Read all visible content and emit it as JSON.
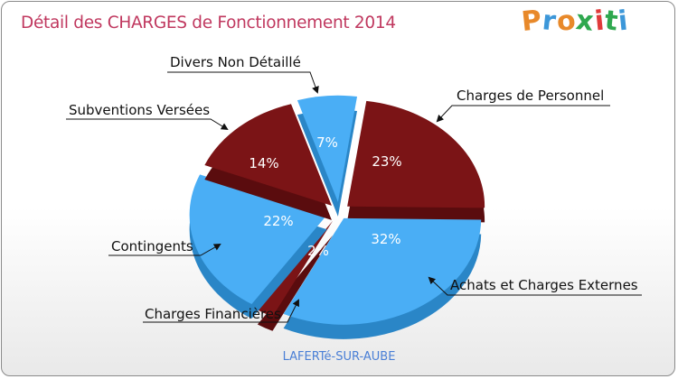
{
  "title": "Détail des CHARGES de Fonctionnement 2014",
  "logo": {
    "letters": [
      "P",
      "r",
      "o",
      "x",
      "i",
      "t",
      "i"
    ],
    "colors": [
      "#e8892a",
      "#3c97d9",
      "#e8892a",
      "#2fa84f",
      "#e03b3b",
      "#2fa84f",
      "#3c97d9"
    ]
  },
  "commune": "LAFERTé-SUR-AUBE",
  "colors": {
    "blue": "#4aaef5",
    "blueDark": "#2a86c7",
    "red": "#7b1416",
    "redDark": "#5a0c0e",
    "title": "#c0385f"
  },
  "chart_data": {
    "type": "pie",
    "title": "Détail des CHARGES de Fonctionnement 2014",
    "slices": [
      {
        "label": "Charges de Personnel",
        "value": 23,
        "pct": "23%",
        "color": "red"
      },
      {
        "label": "Achats et Charges Externes",
        "value": 32,
        "pct": "32%",
        "color": "blue"
      },
      {
        "label": "Charges Financières",
        "value": 2,
        "pct": "2%",
        "color": "red"
      },
      {
        "label": "Contingents",
        "value": 22,
        "pct": "22%",
        "color": "blue"
      },
      {
        "label": "Subventions Versées",
        "value": 14,
        "pct": "14%",
        "color": "red"
      },
      {
        "label": "Divers Non Détaillé",
        "value": 7,
        "pct": "7%",
        "color": "blue"
      }
    ]
  }
}
